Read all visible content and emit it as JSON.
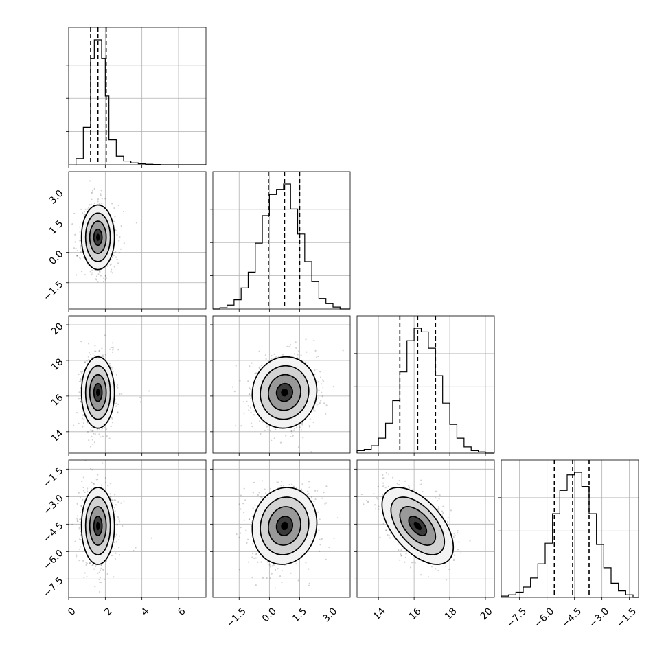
{
  "chart_data": {
    "type": "corner",
    "grid": true,
    "parameters": [
      {
        "ticks": [
          0,
          2,
          4,
          6
        ],
        "tick_labels": [
          "0",
          "2",
          "4",
          "6"
        ],
        "range": [
          0,
          7.5
        ],
        "quantiles": [
          1.2,
          1.6,
          2.05
        ],
        "hist_edges": [
          0.4,
          0.8,
          1.2,
          1.4,
          1.6,
          1.8,
          2.0,
          2.2,
          2.6,
          3.0,
          3.4,
          3.8,
          4.2,
          4.6,
          5.0,
          7.5
        ],
        "hist_counts": [
          0.05,
          0.3,
          0.85,
          1.0,
          1.0,
          0.85,
          0.55,
          0.2,
          0.07,
          0.03,
          0.015,
          0.008,
          0.004,
          0.002,
          0.0
        ]
      },
      {
        "ticks": [
          -1.5,
          0.0,
          1.5,
          3.0
        ],
        "tick_labels": [
          "−1.5",
          "0.0",
          "1.5",
          "3.0"
        ],
        "range": [
          -2.8,
          4.0
        ],
        "quantiles": [
          -0.05,
          0.75,
          1.5
        ],
        "hist_edges": [
          -2.8,
          -2.45,
          -2.1,
          -1.75,
          -1.4,
          -1.05,
          -0.7,
          -0.35,
          0.0,
          0.35,
          0.7,
          1.05,
          1.4,
          1.75,
          2.1,
          2.45,
          2.8,
          3.15,
          3.5,
          4.0
        ],
        "hist_counts": [
          0.0,
          0.01,
          0.03,
          0.07,
          0.16,
          0.28,
          0.5,
          0.71,
          0.87,
          0.91,
          0.95,
          0.76,
          0.57,
          0.36,
          0.21,
          0.08,
          0.04,
          0.015,
          0.0
        ]
      },
      {
        "ticks": [
          14,
          16,
          18,
          20
        ],
        "tick_labels": [
          "14",
          "16",
          "18",
          "20"
        ],
        "range": [
          12.8,
          20.5
        ],
        "quantiles": [
          15.2,
          16.2,
          17.2
        ],
        "hist_edges": [
          12.8,
          13.2,
          13.6,
          14.0,
          14.4,
          14.8,
          15.2,
          15.6,
          16.0,
          16.4,
          16.8,
          17.2,
          17.6,
          18.0,
          18.4,
          18.8,
          19.2,
          19.6,
          20.0,
          20.5
        ],
        "hist_counts": [
          0.02,
          0.03,
          0.06,
          0.12,
          0.24,
          0.42,
          0.65,
          0.9,
          1.0,
          0.97,
          0.84,
          0.62,
          0.4,
          0.23,
          0.12,
          0.05,
          0.02,
          0.01,
          0.0
        ]
      },
      {
        "ticks": [
          -7.5,
          -6.0,
          -4.5,
          -3.0,
          -1.5
        ],
        "tick_labels": [
          "−7.5",
          "−6.0",
          "−4.5",
          "−3.0",
          "−1.5"
        ],
        "range": [
          -8.5,
          -1.0
        ],
        "quantiles": [
          -5.6,
          -4.6,
          -3.7
        ],
        "hist_edges": [
          -8.5,
          -8.1,
          -7.7,
          -7.3,
          -6.9,
          -6.5,
          -6.1,
          -5.7,
          -5.3,
          -4.9,
          -4.5,
          -4.1,
          -3.7,
          -3.3,
          -2.9,
          -2.5,
          -2.1,
          -1.7,
          -1.3,
          -1.0
        ],
        "hist_counts": [
          0.01,
          0.02,
          0.04,
          0.08,
          0.15,
          0.26,
          0.42,
          0.65,
          0.83,
          0.95,
          0.97,
          0.86,
          0.65,
          0.41,
          0.23,
          0.11,
          0.05,
          0.02,
          0.0
        ]
      }
    ],
    "pairs": [
      {
        "row": 1,
        "col": 0,
        "mean": [
          1.6,
          0.75
        ],
        "sd": [
          0.45,
          0.8
        ],
        "rho": 0.0
      },
      {
        "row": 2,
        "col": 0,
        "mean": [
          1.6,
          16.2
        ],
        "sd": [
          0.45,
          1.0
        ],
        "rho": 0.0
      },
      {
        "row": 2,
        "col": 1,
        "mean": [
          0.75,
          16.2
        ],
        "sd": [
          0.8,
          1.0
        ],
        "rho": 0.05
      },
      {
        "row": 3,
        "col": 0,
        "mean": [
          1.6,
          -4.6
        ],
        "sd": [
          0.45,
          1.05
        ],
        "rho": 0.0
      },
      {
        "row": 3,
        "col": 1,
        "mean": [
          0.75,
          -4.6
        ],
        "sd": [
          0.8,
          1.05
        ],
        "rho": 0.08
      },
      {
        "row": 3,
        "col": 2,
        "mean": [
          16.2,
          -4.6
        ],
        "sd": [
          1.0,
          1.05
        ],
        "rho": -0.55
      }
    ],
    "contour_levels_sigma": [
      0.5,
      1.0,
      1.5,
      2.0
    ],
    "colors": {
      "line": "#000000",
      "grid": "#b0b0b0",
      "points": "#000000"
    }
  }
}
